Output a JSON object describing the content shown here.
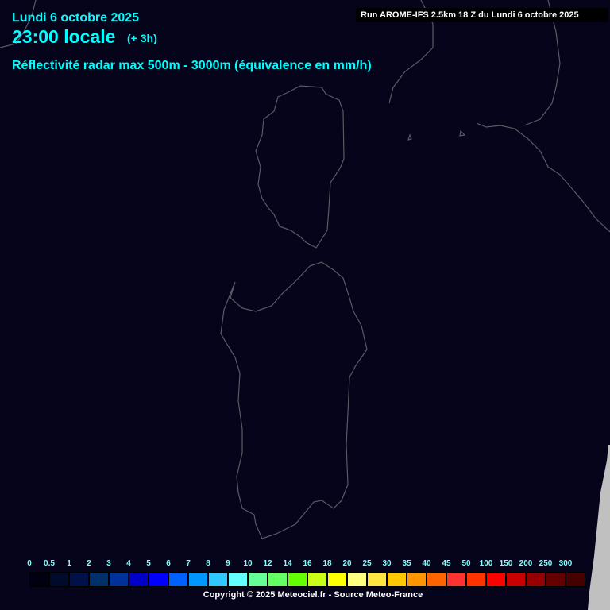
{
  "header": {
    "date": "Lundi 6 octobre 2025",
    "time": "23:00 locale",
    "lead": "(+ 3h)",
    "title": "Réflectivité radar max 500m - 3000m (équivalence en mm/h)",
    "run": "Run AROME-IFS 2.5km 18 Z du Lundi 6 octobre 2025"
  },
  "legend": {
    "labels": [
      "0",
      "0.5",
      "1",
      "2",
      "3",
      "4",
      "5",
      "6",
      "7",
      "8",
      "9",
      "10",
      "12",
      "14",
      "16",
      "18",
      "20",
      "25",
      "30",
      "35",
      "40",
      "45",
      "50",
      "100",
      "150",
      "200",
      "250",
      "300"
    ],
    "colors": [
      "#000010",
      "#000a2a",
      "#001048",
      "#00306a",
      "#00309a",
      "#0000c8",
      "#0000ff",
      "#0060ff",
      "#0096ff",
      "#30c8ff",
      "#64ffff",
      "#64ff96",
      "#64ff64",
      "#64ff00",
      "#c8ff14",
      "#ffff00",
      "#ffff80",
      "#ffe640",
      "#ffc800",
      "#ff9600",
      "#ff6400",
      "#ff3232",
      "#ff3200",
      "#ff0000",
      "#c80000",
      "#960000",
      "#640000",
      "#460000"
    ]
  },
  "footer": {
    "copyright": "Copyright © 2025 Meteociel.fr - Source Meteo-France"
  },
  "colors": {
    "background": "#05041a",
    "coastline": "#5a5a64",
    "no_data": "#c0c0c0"
  }
}
